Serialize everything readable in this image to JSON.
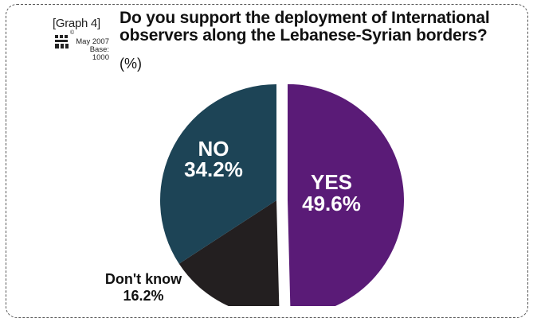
{
  "header": {
    "graph_label": "[Graph 4]",
    "date": "May 2007",
    "base": "Base: 1000",
    "title": "Do you support the deployment of International observers along the Lebanese-Syrian borders?",
    "subtitle": "(%)"
  },
  "colors": {
    "yes": "#5a1b77",
    "no": "#1d4456",
    "dont_know": "#231f20"
  },
  "chart_data": {
    "type": "pie",
    "title": "Do you support the deployment of International observers along the Lebanese-Syrian borders?",
    "subtitle": "(%)",
    "slices": [
      {
        "label": "YES",
        "value": 49.6,
        "value_text": "49.6%",
        "color": "#5a1b77",
        "exploded": true
      },
      {
        "label": "Don't know",
        "value": 16.2,
        "value_text": "16.2%",
        "color": "#231f20"
      },
      {
        "label": "NO",
        "value": 34.2,
        "value_text": "34.2%",
        "color": "#1d4456"
      }
    ]
  }
}
